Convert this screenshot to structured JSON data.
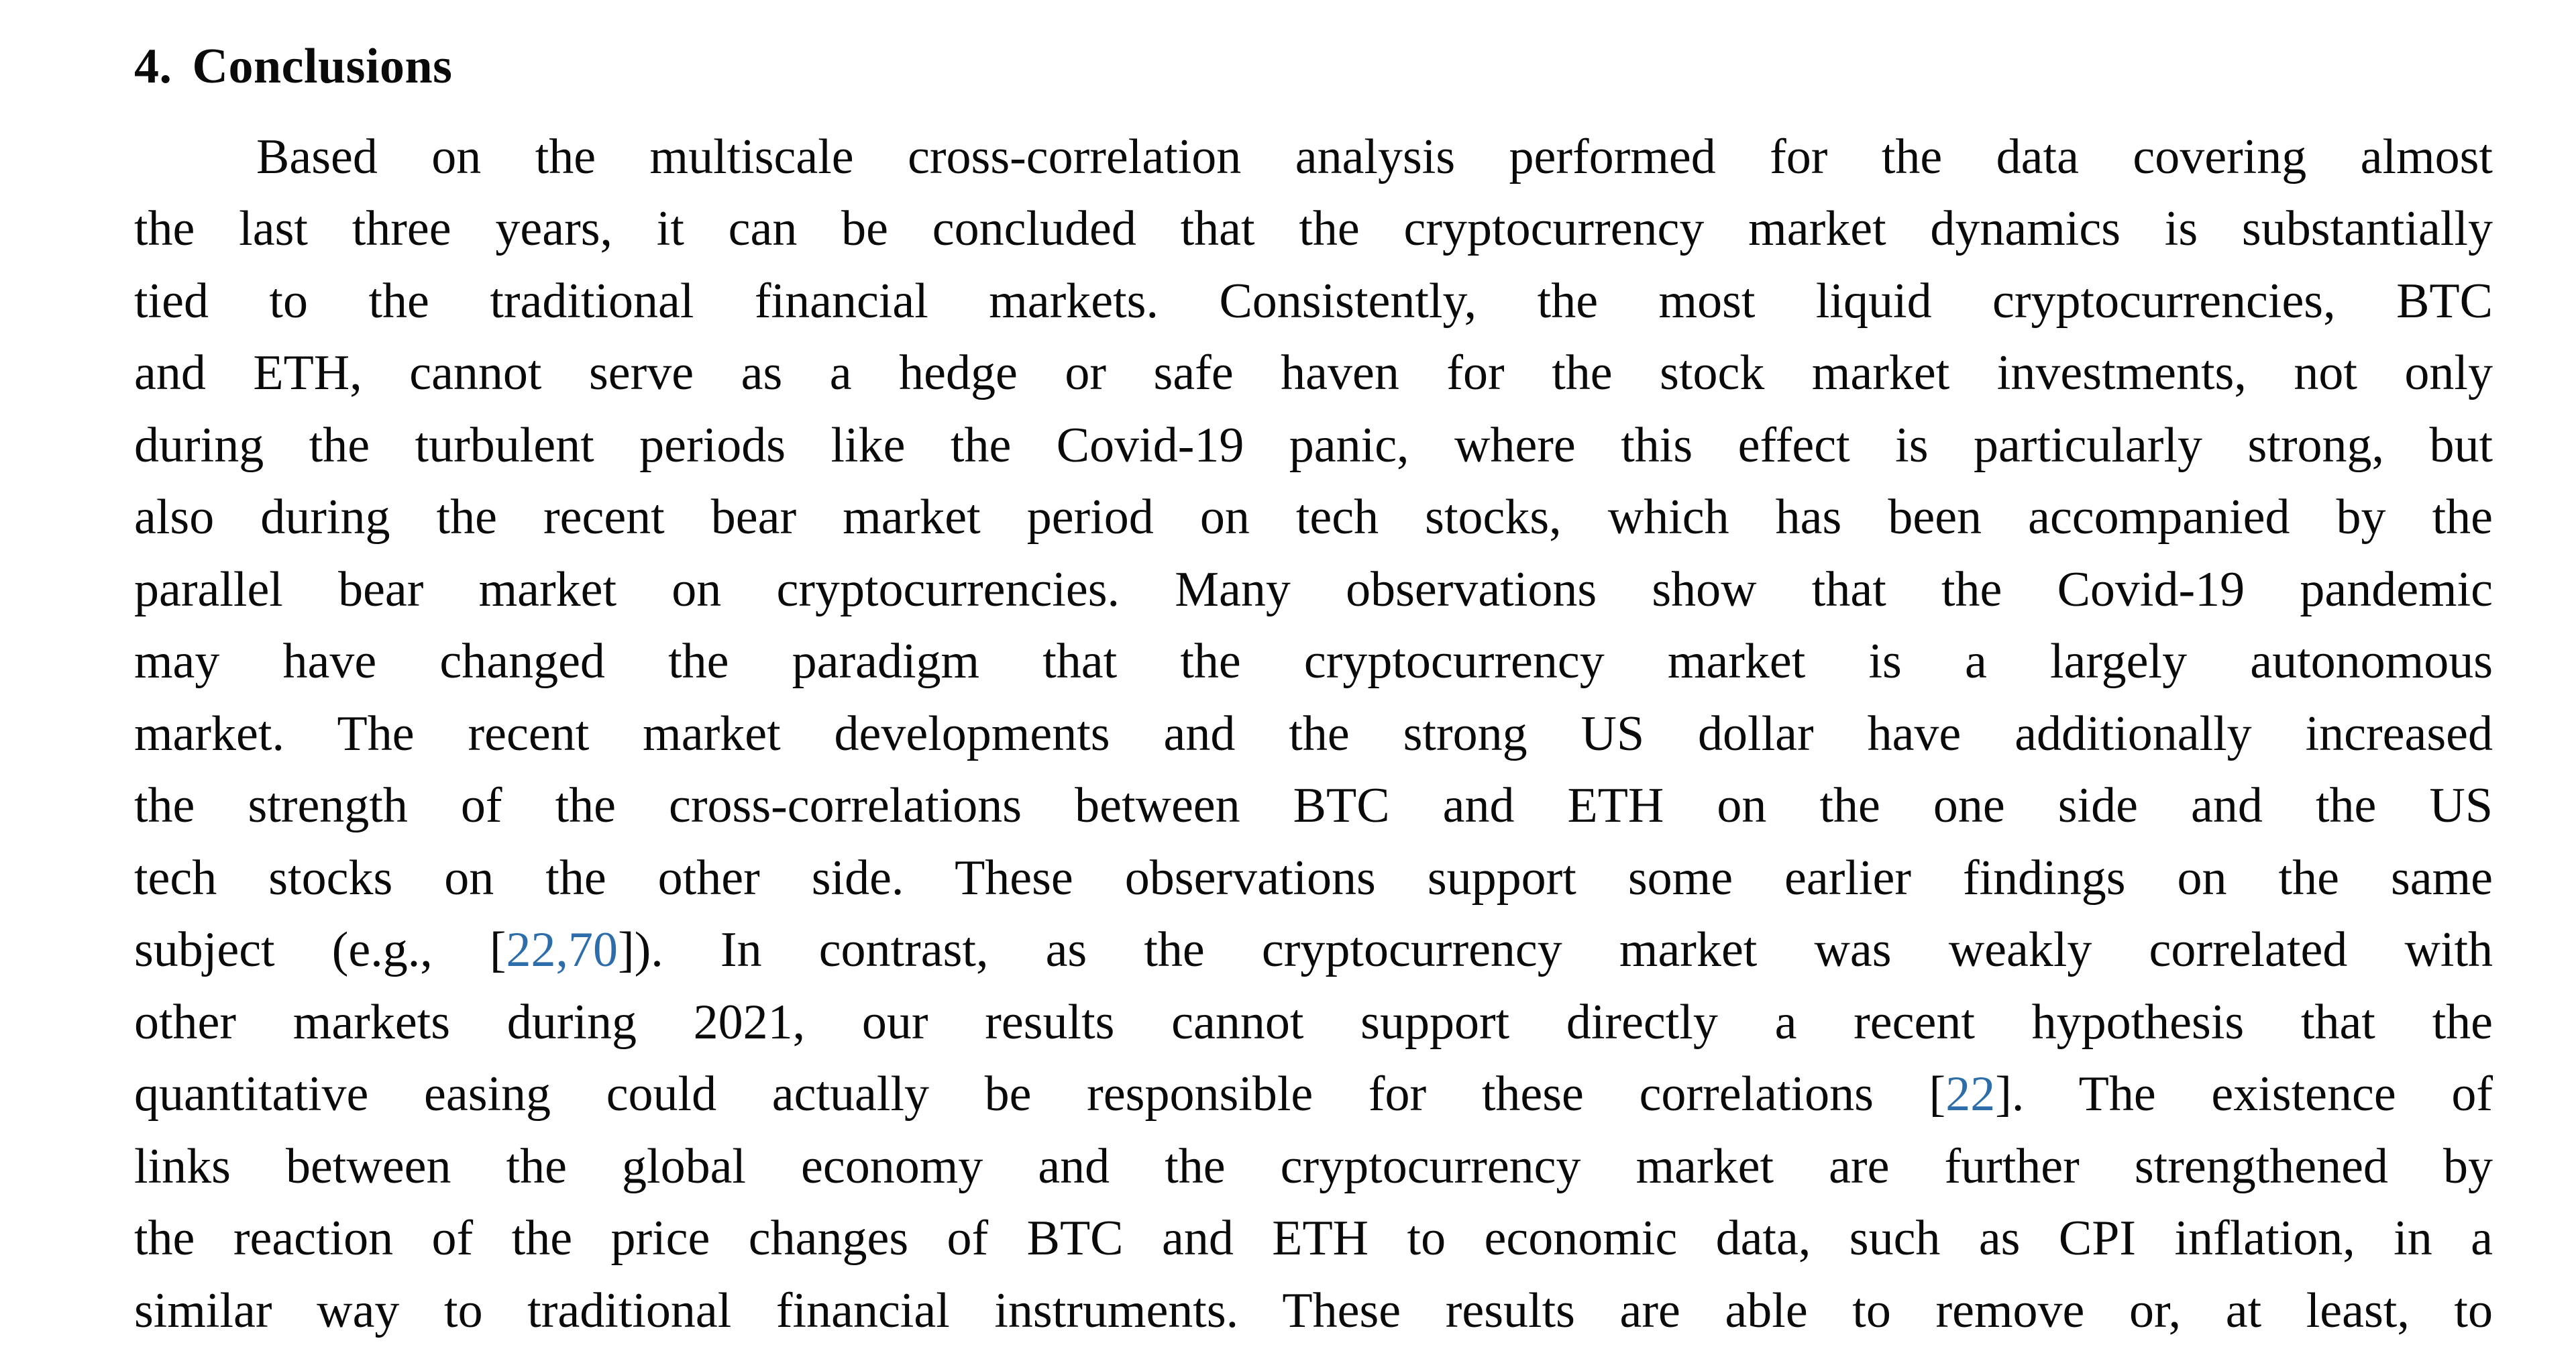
{
  "document": {
    "background_color": "#ffffff",
    "text_color": "#0a0a0a",
    "citation_color": "#2d6eaa",
    "section_heading": {
      "number": "4.",
      "title": "Conclusions"
    },
    "paragraph_lines": [
      [
        {
          "text": "Based on the multiscale cross-correlation analysis performed for the data covering almost"
        }
      ],
      [
        {
          "text": "the last three years, it can be concluded that the cryptocurrency market dynamics is substantially"
        }
      ],
      [
        {
          "text": "tied to the traditional financial markets. Consistently, the most liquid cryptocurrencies, BTC"
        }
      ],
      [
        {
          "text": "and ETH, cannot serve as a hedge or safe haven for the stock market investments, not only"
        }
      ],
      [
        {
          "text": "during the turbulent periods like the Covid-19 panic, where this effect is particularly strong, but"
        }
      ],
      [
        {
          "text": "also during the recent bear market period on tech stocks, which has been accompanied by the"
        }
      ],
      [
        {
          "text": "parallel bear market on cryptocurrencies. Many observations show that the Covid-19 pandemic"
        }
      ],
      [
        {
          "text": "may have changed the paradigm that the cryptocurrency market is a largely autonomous"
        }
      ],
      [
        {
          "text": "market. The recent market developments and the strong US dollar have additionally increased"
        }
      ],
      [
        {
          "text": "the strength of the cross-correlations between BTC and ETH on the one side and the US"
        }
      ],
      [
        {
          "text": "tech stocks on the other side. These observations support some earlier findings on the same"
        }
      ],
      [
        {
          "text": "subject (e.g., ["
        },
        {
          "text": "22,70",
          "citation": true
        },
        {
          "text": "]). In contrast, as the cryptocurrency market was weakly correlated with"
        }
      ],
      [
        {
          "text": "other markets during 2021, our results cannot support directly a recent hypothesis that the"
        }
      ],
      [
        {
          "text": "quantitative easing could actually be responsible for these correlations ["
        },
        {
          "text": "22",
          "citation": true
        },
        {
          "text": "]. The existence of"
        }
      ],
      [
        {
          "text": "links between the global economy and the cryptocurrency market are further strengthened by"
        }
      ],
      [
        {
          "text": "the reaction of the price changes of BTC and ETH to economic data, such as CPI inflation, in a"
        }
      ],
      [
        {
          "text": "similar way to traditional financial instruments. These results are able to remove or, at least, to"
        }
      ]
    ]
  }
}
